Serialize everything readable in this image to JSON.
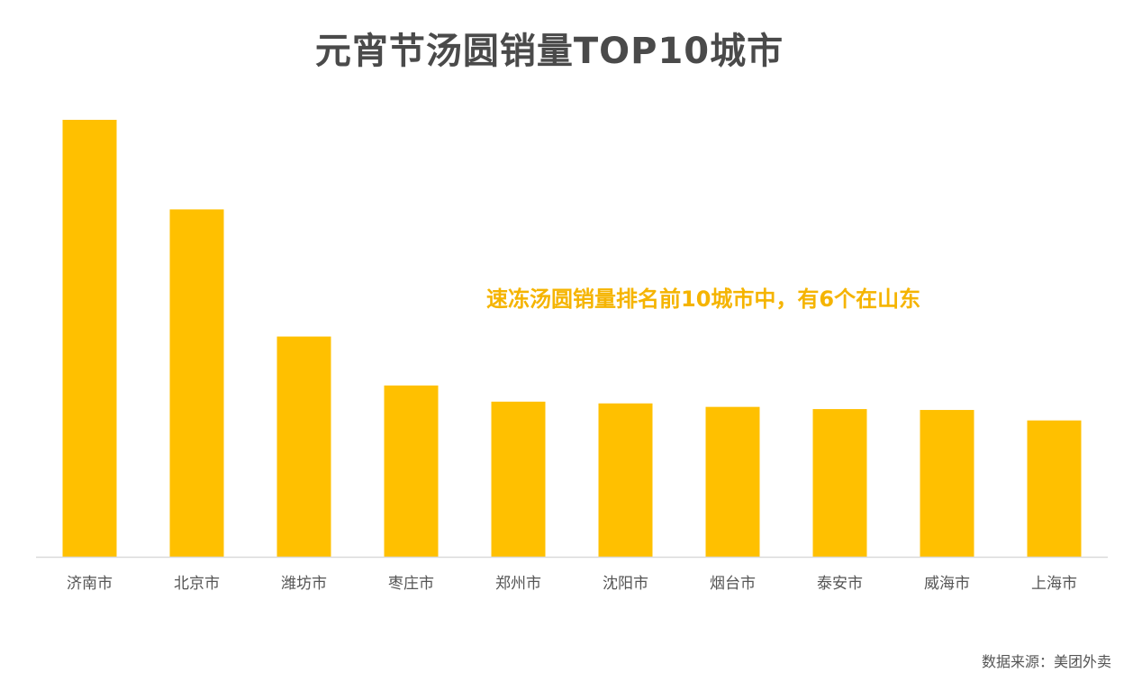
{
  "title": "元宵节汤圆销量TOP10城市",
  "annotation": "速冻汤圆销量排名前10城市中，有6个在山东",
  "source": "数据来源：美团外卖",
  "colors": {
    "bar": "#FFC000",
    "axis": "#d9d9d9",
    "tick_text": "#555555",
    "title": "#4a4a4a",
    "annotation": "#F5B400"
  },
  "chart_data": {
    "type": "bar",
    "title": "元宵节汤圆销量TOP10城市",
    "xlabel": "",
    "ylabel": "",
    "categories": [
      "济南市",
      "北京市",
      "潍坊市",
      "枣庄市",
      "郑州市",
      "沈阳市",
      "烟台市",
      "泰安市",
      "威海市",
      "上海市"
    ],
    "values": [
      100,
      79.5,
      50.4,
      39.2,
      35.5,
      35.1,
      34.3,
      33.8,
      33.6,
      31.2
    ],
    "ylim": [
      0,
      100
    ],
    "grid": false,
    "legend": "none",
    "annotations": [
      "速冻汤圆销量排名前10城市中，有6个在山东"
    ]
  }
}
